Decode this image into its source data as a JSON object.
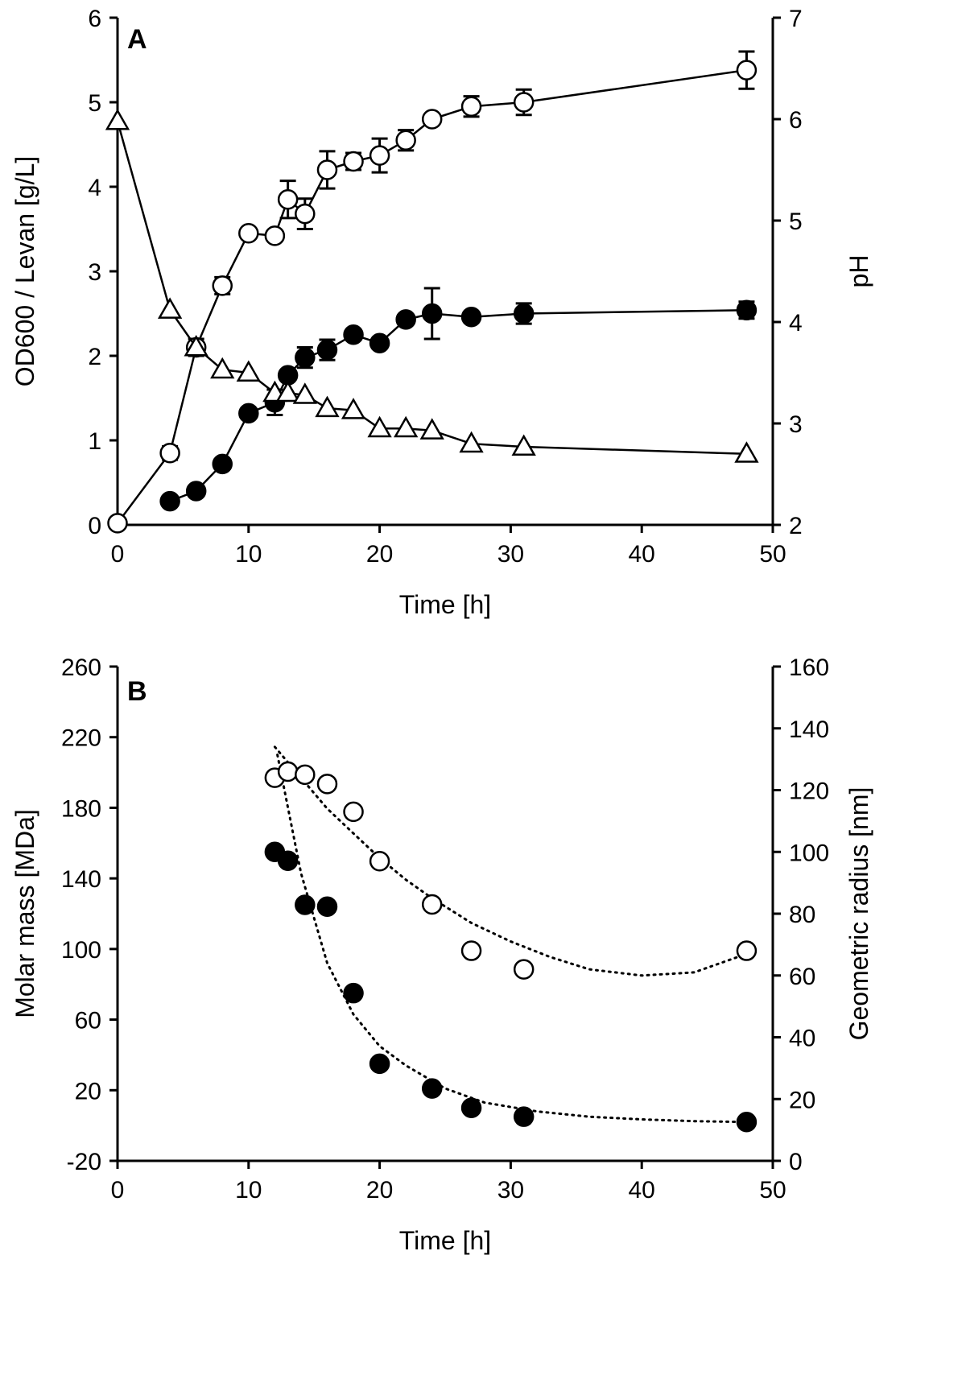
{
  "chart_data": [
    {
      "panel": "A",
      "type": "line",
      "xlabel": "Time [h]",
      "ylabel_left": "OD600 / Levan [g/L]",
      "ylabel_right": "pH",
      "xlim": [
        0,
        50
      ],
      "ylim_left": [
        0,
        6
      ],
      "ylim_right": [
        2,
        7
      ],
      "xticks": [
        0,
        10,
        20,
        30,
        40,
        50
      ],
      "yticks_left": [
        0,
        1,
        2,
        3,
        4,
        5,
        6
      ],
      "yticks_right": [
        2,
        3,
        4,
        5,
        6,
        7
      ],
      "grid": false,
      "series": [
        {
          "name": "OD600",
          "marker": "open-circle",
          "axis": "left",
          "x": [
            0,
            4,
            6,
            8,
            10,
            12,
            13,
            14.3,
            16,
            18,
            20,
            22,
            24,
            27,
            31,
            48
          ],
          "y": [
            0.02,
            0.85,
            2.1,
            2.83,
            3.45,
            3.42,
            3.85,
            3.68,
            4.2,
            4.3,
            4.37,
            4.55,
            4.8,
            4.95,
            5.0,
            5.38
          ],
          "err": [
            0,
            0.08,
            0.1,
            0.1,
            0,
            0,
            0.22,
            0.18,
            0.22,
            0.1,
            0.2,
            0.12,
            0,
            0.12,
            0.15,
            0.22
          ]
        },
        {
          "name": "Levan",
          "marker": "filled-circle",
          "axis": "left",
          "x": [
            4,
            6,
            8,
            10,
            12,
            13,
            14.3,
            16,
            18,
            20,
            22,
            24,
            27,
            31,
            48
          ],
          "y": [
            0.28,
            0.4,
            0.72,
            1.32,
            1.45,
            1.77,
            1.98,
            2.07,
            2.25,
            2.15,
            2.43,
            2.5,
            2.46,
            2.5,
            2.54
          ],
          "err": [
            0,
            0,
            0,
            0,
            0.15,
            0,
            0.12,
            0.12,
            0,
            0,
            0,
            0.3,
            0,
            0.12,
            0.1
          ]
        },
        {
          "name": "pH",
          "marker": "open-triangle",
          "axis": "right",
          "x": [
            0,
            4,
            6,
            8,
            10,
            12,
            13,
            14.3,
            16,
            18,
            20,
            22,
            24,
            27,
            31,
            48
          ],
          "y": [
            5.98,
            4.12,
            3.75,
            3.53,
            3.5,
            3.3,
            3.3,
            3.28,
            3.15,
            3.13,
            2.95,
            2.95,
            2.93,
            2.8,
            2.77,
            2.7
          ]
        }
      ]
    },
    {
      "panel": "B",
      "type": "scatter",
      "xlabel": "Time [h]",
      "ylabel_left": "Molar mass [MDa]",
      "ylabel_right": "Geometric radius [nm]",
      "xlim": [
        0,
        50
      ],
      "ylim_left": [
        -20,
        260
      ],
      "ylim_right": [
        0,
        160
      ],
      "xticks": [
        0,
        10,
        20,
        30,
        40,
        50
      ],
      "yticks_left": [
        -20,
        20,
        60,
        100,
        140,
        180,
        220,
        260
      ],
      "yticks_right": [
        0,
        20,
        40,
        60,
        80,
        100,
        120,
        140,
        160
      ],
      "grid": false,
      "series": [
        {
          "name": "Molar mass",
          "marker": "filled-circle",
          "axis": "left",
          "x": [
            12,
            13,
            14.3,
            16,
            18,
            20,
            24,
            27,
            31,
            48
          ],
          "y": [
            155,
            150,
            125,
            124,
            75,
            35,
            21,
            10,
            5,
            2
          ],
          "trend_x": [
            12.2,
            14,
            16,
            18,
            20,
            22,
            25,
            28,
            32,
            36,
            40,
            44,
            48
          ],
          "trend_y": [
            210,
            143,
            92,
            63,
            45,
            34,
            21,
            13,
            8,
            5,
            3.5,
            2.5,
            2
          ]
        },
        {
          "name": "Geometric radius",
          "marker": "open-circle",
          "axis": "right",
          "x": [
            12,
            13,
            14.3,
            16,
            18,
            20,
            24,
            27,
            31,
            48
          ],
          "y": [
            124,
            126,
            125,
            122,
            113,
            97,
            83,
            68,
            62,
            68
          ],
          "trend_x": [
            12,
            14,
            16,
            18,
            20,
            22,
            24,
            27,
            30,
            33,
            36,
            40,
            44,
            48
          ],
          "trend_y": [
            134,
            124,
            114,
            106,
            98,
            91,
            85,
            77,
            71,
            66,
            62,
            60,
            61,
            67
          ]
        }
      ]
    }
  ],
  "colors": {
    "ink": "#000000",
    "paper": "#ffffff"
  }
}
